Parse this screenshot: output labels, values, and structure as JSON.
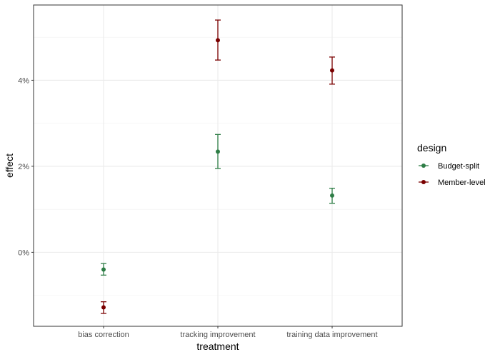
{
  "chart_data": {
    "type": "scatter",
    "title": "",
    "xlabel": "treatment",
    "ylabel": "effect",
    "categories": [
      "bias correction",
      "tracking improvement",
      "training data improvement"
    ],
    "ylim": [
      -0.0172,
      0.0575
    ],
    "yticks": [
      0,
      0.02,
      0.04
    ],
    "ytick_labels": [
      "0%",
      "2%",
      "4%"
    ],
    "grid": true,
    "legend": {
      "title": "design",
      "placement": "right"
    },
    "series": [
      {
        "name": "Budget-split",
        "color": "#2e7d46",
        "values": [
          -0.004,
          0.0234,
          0.0132
        ],
        "lower": [
          -0.0053,
          0.0195,
          0.0114
        ],
        "upper": [
          -0.0026,
          0.0274,
          0.0149
        ]
      },
      {
        "name": "Member-level",
        "color": "#7a0000",
        "values": [
          -0.0128,
          0.0493,
          0.0423
        ],
        "lower": [
          -0.0142,
          0.0447,
          0.0391
        ],
        "upper": [
          -0.0115,
          0.054,
          0.0454
        ]
      }
    ]
  }
}
